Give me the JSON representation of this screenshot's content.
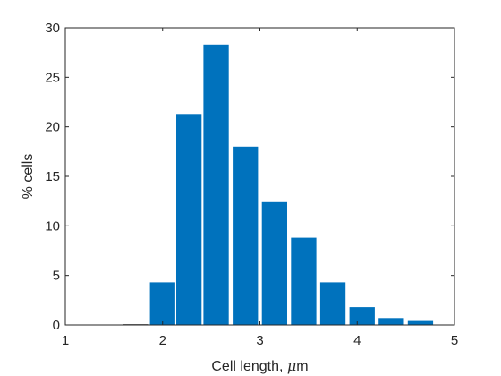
{
  "chart_data": {
    "type": "bar",
    "xlabel_prefix": "Cell length, ",
    "xlabel_symbol": "μ",
    "xlabel_suffix": "m",
    "ylabel": "% cells",
    "xlim": [
      1,
      5
    ],
    "ylim": [
      0,
      30
    ],
    "xticks": [
      1,
      2,
      3,
      4,
      5
    ],
    "yticks": [
      0,
      5,
      10,
      15,
      20,
      25,
      30
    ],
    "bar_width": 0.26,
    "x": [
      1.72,
      2.0,
      2.27,
      2.55,
      2.85,
      3.15,
      3.45,
      3.75,
      4.05,
      4.35,
      4.65
    ],
    "values": [
      0.0,
      4.3,
      21.3,
      28.3,
      18.0,
      12.4,
      8.8,
      4.3,
      1.8,
      0.7,
      0.4
    ],
    "bar_color": "#0072BD",
    "grid": false
  }
}
